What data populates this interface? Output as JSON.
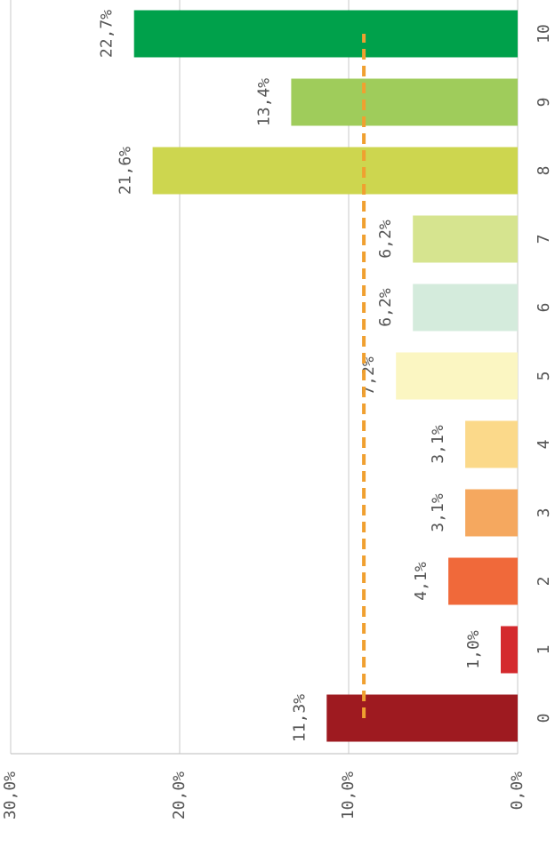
{
  "chart_data": {
    "type": "bar",
    "categories": [
      "0",
      "1",
      "2",
      "3",
      "4",
      "5",
      "6",
      "7",
      "8",
      "9",
      "10"
    ],
    "values": [
      11.3,
      1.0,
      4.1,
      3.1,
      3.1,
      7.2,
      6.2,
      6.2,
      21.6,
      13.4,
      22.7
    ],
    "value_labels": [
      "11,3%",
      "1,0%",
      "4,1%",
      "3,1%",
      "3,1%",
      "7,2%",
      "6,2%",
      "6,2%",
      "21,6%",
      "13,4%",
      "22,7%"
    ],
    "colors": [
      "#9e1a20",
      "#d42a2e",
      "#f0693a",
      "#f5a85f",
      "#fbd98a",
      "#fbf6c2",
      "#d4ebdc",
      "#d6e48f",
      "#cdd64f",
      "#9fcc5b",
      "#00a14b"
    ],
    "ylim": [
      0,
      30
    ],
    "yticks": [
      {
        "value": 0,
        "label": "0,0%"
      },
      {
        "value": 10,
        "label": "10,0%"
      },
      {
        "value": 20,
        "label": "20,0%"
      },
      {
        "value": 30,
        "label": "30,0%"
      }
    ],
    "grid": true,
    "reference_line": {
      "value": 9.1,
      "color": "#f0a030"
    }
  }
}
